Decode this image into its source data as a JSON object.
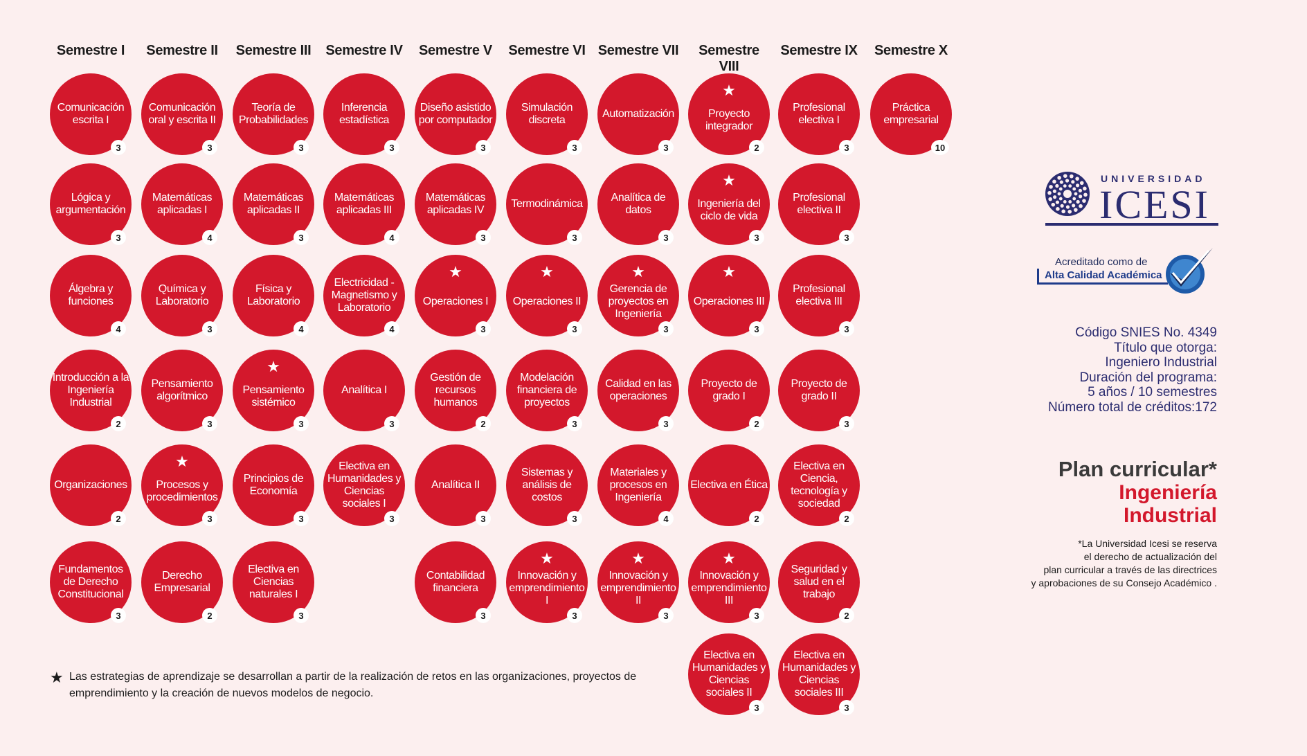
{
  "semesters": [
    "Semestre I",
    "Semestre II",
    "Semestre III",
    "Semestre IV",
    "Semestre V",
    "Semestre VI",
    "Semestre VII",
    "Semestre VIII",
    "Semestre IX",
    "Semestre X"
  ],
  "courses": [
    {
      "col": 0,
      "row": 0,
      "name": "Comunicación escrita I",
      "credits": "3",
      "star": false
    },
    {
      "col": 0,
      "row": 1,
      "name": "Lógica y argumentación",
      "credits": "3",
      "star": false
    },
    {
      "col": 0,
      "row": 2,
      "name": "Álgebra y funciones",
      "credits": "4",
      "star": false
    },
    {
      "col": 0,
      "row": 3,
      "name": "Introducción a la Ingeniería Industrial",
      "credits": "2",
      "star": false
    },
    {
      "col": 0,
      "row": 4,
      "name": "Organizaciones",
      "credits": "2",
      "star": false
    },
    {
      "col": 0,
      "row": 5,
      "name": "Fundamentos de Derecho Constitucional",
      "credits": "3",
      "star": false
    },
    {
      "col": 1,
      "row": 0,
      "name": "Comunicación oral y escrita II",
      "credits": "3",
      "star": false
    },
    {
      "col": 1,
      "row": 1,
      "name": "Matemáticas aplicadas I",
      "credits": "4",
      "star": false
    },
    {
      "col": 1,
      "row": 2,
      "name": "Química y Laboratorio",
      "credits": "3",
      "star": false
    },
    {
      "col": 1,
      "row": 3,
      "name": "Pensamiento algorítmico",
      "credits": "3",
      "star": false
    },
    {
      "col": 1,
      "row": 4,
      "name": "Procesos y procedimientos",
      "credits": "3",
      "star": true
    },
    {
      "col": 1,
      "row": 5,
      "name": "Derecho Empresarial",
      "credits": "2",
      "star": false
    },
    {
      "col": 2,
      "row": 0,
      "name": "Teoría de Probabilidades",
      "credits": "3",
      "star": false
    },
    {
      "col": 2,
      "row": 1,
      "name": "Matemáticas aplicadas II",
      "credits": "3",
      "star": false
    },
    {
      "col": 2,
      "row": 2,
      "name": "Física y Laboratorio",
      "credits": "4",
      "star": false
    },
    {
      "col": 2,
      "row": 3,
      "name": "Pensamiento sistémico",
      "credits": "3",
      "star": true
    },
    {
      "col": 2,
      "row": 4,
      "name": "Principios de Economía",
      "credits": "3",
      "star": false
    },
    {
      "col": 2,
      "row": 5,
      "name": "Electiva en Ciencias naturales I",
      "credits": "3",
      "star": false
    },
    {
      "col": 3,
      "row": 0,
      "name": "Inferencia estadística",
      "credits": "3",
      "star": false
    },
    {
      "col": 3,
      "row": 1,
      "name": "Matemáticas aplicadas III",
      "credits": "4",
      "star": false
    },
    {
      "col": 3,
      "row": 2,
      "name": "Electricidad - Magnetismo y Laboratorio",
      "credits": "4",
      "star": false
    },
    {
      "col": 3,
      "row": 3,
      "name": "Analítica I",
      "credits": "3",
      "star": false
    },
    {
      "col": 3,
      "row": 4,
      "name": "Electiva en Humanidades y Ciencias sociales I",
      "credits": "3",
      "star": false
    },
    {
      "col": 4,
      "row": 0,
      "name": "Diseño asistido por computador",
      "credits": "3",
      "star": false
    },
    {
      "col": 4,
      "row": 1,
      "name": "Matemáticas aplicadas IV",
      "credits": "3",
      "star": false
    },
    {
      "col": 4,
      "row": 2,
      "name": "Operaciones I",
      "credits": "3",
      "star": true
    },
    {
      "col": 4,
      "row": 3,
      "name": "Gestión de recursos humanos",
      "credits": "2",
      "star": false
    },
    {
      "col": 4,
      "row": 4,
      "name": "Analítica II",
      "credits": "3",
      "star": false
    },
    {
      "col": 4,
      "row": 5,
      "name": "Contabilidad financiera",
      "credits": "3",
      "star": false
    },
    {
      "col": 5,
      "row": 0,
      "name": "Simulación discreta",
      "credits": "3",
      "star": false
    },
    {
      "col": 5,
      "row": 1,
      "name": "Termodinámica",
      "credits": "3",
      "star": false
    },
    {
      "col": 5,
      "row": 2,
      "name": "Operaciones II",
      "credits": "3",
      "star": true
    },
    {
      "col": 5,
      "row": 3,
      "name": "Modelación financiera de proyectos",
      "credits": "3",
      "star": false
    },
    {
      "col": 5,
      "row": 4,
      "name": "Sistemas y análisis de costos",
      "credits": "3",
      "star": false
    },
    {
      "col": 5,
      "row": 5,
      "name": "Innovación y emprendimiento I",
      "credits": "3",
      "star": true
    },
    {
      "col": 6,
      "row": 0,
      "name": "Automatización",
      "credits": "3",
      "star": false
    },
    {
      "col": 6,
      "row": 1,
      "name": "Analítica de datos",
      "credits": "3",
      "star": false
    },
    {
      "col": 6,
      "row": 2,
      "name": "Gerencia de proyectos en Ingeniería",
      "credits": "3",
      "star": true
    },
    {
      "col": 6,
      "row": 3,
      "name": "Calidad en las operaciones",
      "credits": "3",
      "star": false
    },
    {
      "col": 6,
      "row": 4,
      "name": "Materiales y procesos en Ingeniería",
      "credits": "4",
      "star": false
    },
    {
      "col": 6,
      "row": 5,
      "name": "Innovación y emprendimiento II",
      "credits": "3",
      "star": true
    },
    {
      "col": 7,
      "row": 0,
      "name": "Proyecto integrador",
      "credits": "2",
      "star": true
    },
    {
      "col": 7,
      "row": 1,
      "name": "Ingeniería del ciclo de vida",
      "credits": "3",
      "star": true
    },
    {
      "col": 7,
      "row": 2,
      "name": "Operaciones III",
      "credits": "3",
      "star": true
    },
    {
      "col": 7,
      "row": 3,
      "name": "Proyecto de grado I",
      "credits": "2",
      "star": false
    },
    {
      "col": 7,
      "row": 4,
      "name": "Electiva en Ética",
      "credits": "2",
      "star": false
    },
    {
      "col": 7,
      "row": 5,
      "name": "Innovación y emprendimiento III",
      "credits": "3",
      "star": true
    },
    {
      "col": 7,
      "row": 6,
      "name": "Electiva en Humanidades y Ciencias sociales II",
      "credits": "3",
      "star": false
    },
    {
      "col": 8,
      "row": 0,
      "name": "Profesional electiva I",
      "credits": "3",
      "star": false
    },
    {
      "col": 8,
      "row": 1,
      "name": "Profesional electiva II",
      "credits": "3",
      "star": false
    },
    {
      "col": 8,
      "row": 2,
      "name": "Profesional electiva III",
      "credits": "3",
      "star": false
    },
    {
      "col": 8,
      "row": 3,
      "name": "Proyecto de grado II",
      "credits": "3",
      "star": false
    },
    {
      "col": 8,
      "row": 4,
      "name": "Electiva en Ciencia, tecnología y sociedad",
      "credits": "2",
      "star": false
    },
    {
      "col": 8,
      "row": 5,
      "name": "Seguridad y salud en el trabajo",
      "credits": "2",
      "star": false
    },
    {
      "col": 8,
      "row": 6,
      "name": "Electiva en Humanidades y Ciencias sociales III",
      "credits": "3",
      "star": false
    },
    {
      "col": 9,
      "row": 0,
      "name": "Práctica empresarial",
      "credits": "10",
      "star": false
    }
  ],
  "logo": {
    "university": "UNIVERSIDAD",
    "name": "ICESI",
    "color": "#2b2c70"
  },
  "accreditation": {
    "line1": "Acreditado como de",
    "line2": "Alta Calidad Académica"
  },
  "info": [
    "Código SNIES No. 4349",
    "Título que otorga:",
    "Ingeniero Industrial",
    "Duración del programa:",
    "5 años / 10 semestres",
    "Número total de créditos:172"
  ],
  "plan": {
    "title": "Plan curricular*",
    "subtitle_line1": "Ingeniería",
    "subtitle_line2": "Industrial"
  },
  "disclaimer": [
    "*La Universidad Icesi se reserva",
    "el derecho de actualización del",
    "plan curricular a través de las directrices",
    "y aprobaciones de su Consejo Académico ."
  ],
  "footnote": "Las estrategias de aprendizaje se desarrollan a partir de la realización de retos en las organizaciones, proyectos de emprendimiento y la creación de nuevos modelos de negocio.",
  "colors": {
    "accent": "#d3182c",
    "background": "#fcefef",
    "brand": "#2b2c70"
  }
}
